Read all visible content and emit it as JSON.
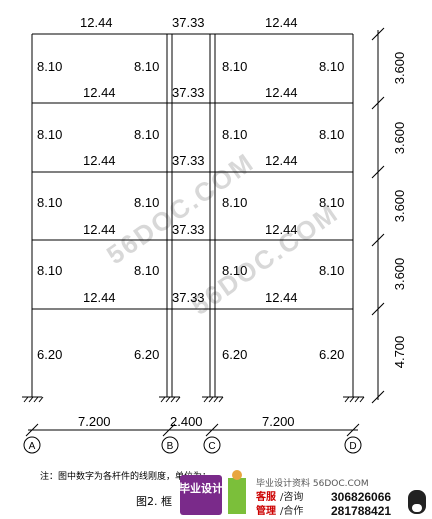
{
  "frame": {
    "top_beam_values": [
      "12.44",
      "37.33",
      "12.44"
    ],
    "column_value_typical": "8.10",
    "column_value_ground": "6.20",
    "story_heights": [
      "3.600",
      "3.600",
      "3.600",
      "3.600",
      "4.700"
    ],
    "bay_widths": [
      "7.200",
      "2.400",
      "7.200"
    ],
    "axes": [
      "A",
      "B",
      "C",
      "D"
    ]
  },
  "rows": [
    {
      "left_col": "8.10",
      "right_col_b": "8.10",
      "right_col_c": "8.10",
      "right_col_d": "8.10",
      "beam_ab": "12.44",
      "beam_bc": "37.33",
      "beam_cd": "12.44"
    },
    {
      "left_col": "8.10",
      "right_col_b": "8.10",
      "right_col_c": "8.10",
      "right_col_d": "8.10",
      "beam_ab": "12.44",
      "beam_bc": "37.33",
      "beam_cd": "12.44"
    },
    {
      "left_col": "8.10",
      "right_col_b": "8.10",
      "right_col_c": "8.10",
      "right_col_d": "8.10",
      "beam_ab": "12.44",
      "beam_bc": "37.33",
      "beam_cd": "12.44"
    },
    {
      "left_col": "8.10",
      "right_col_b": "8.10",
      "right_col_c": "8.10",
      "right_col_d": "8.10",
      "beam_ab": "12.44",
      "beam_bc": "37.33",
      "beam_cd": "12.44"
    },
    {
      "left_col": "6.20",
      "right_col_b": "6.20",
      "right_col_c": "6.20",
      "right_col_d": "6.20"
    }
  ],
  "note": "注：图中数字为各杆件的线刚度，单位为：",
  "caption": "图2. 框",
  "watermark": "56DOC.COM",
  "footer": {
    "logo": "毕业设计",
    "title": "毕业设计资料 56DOC.COM",
    "service_label": "客服",
    "service_sub": "/咨询",
    "service_qq": "306826066",
    "manage_label": "管理",
    "manage_sub": "/合作",
    "manage_qq": "281788421"
  }
}
